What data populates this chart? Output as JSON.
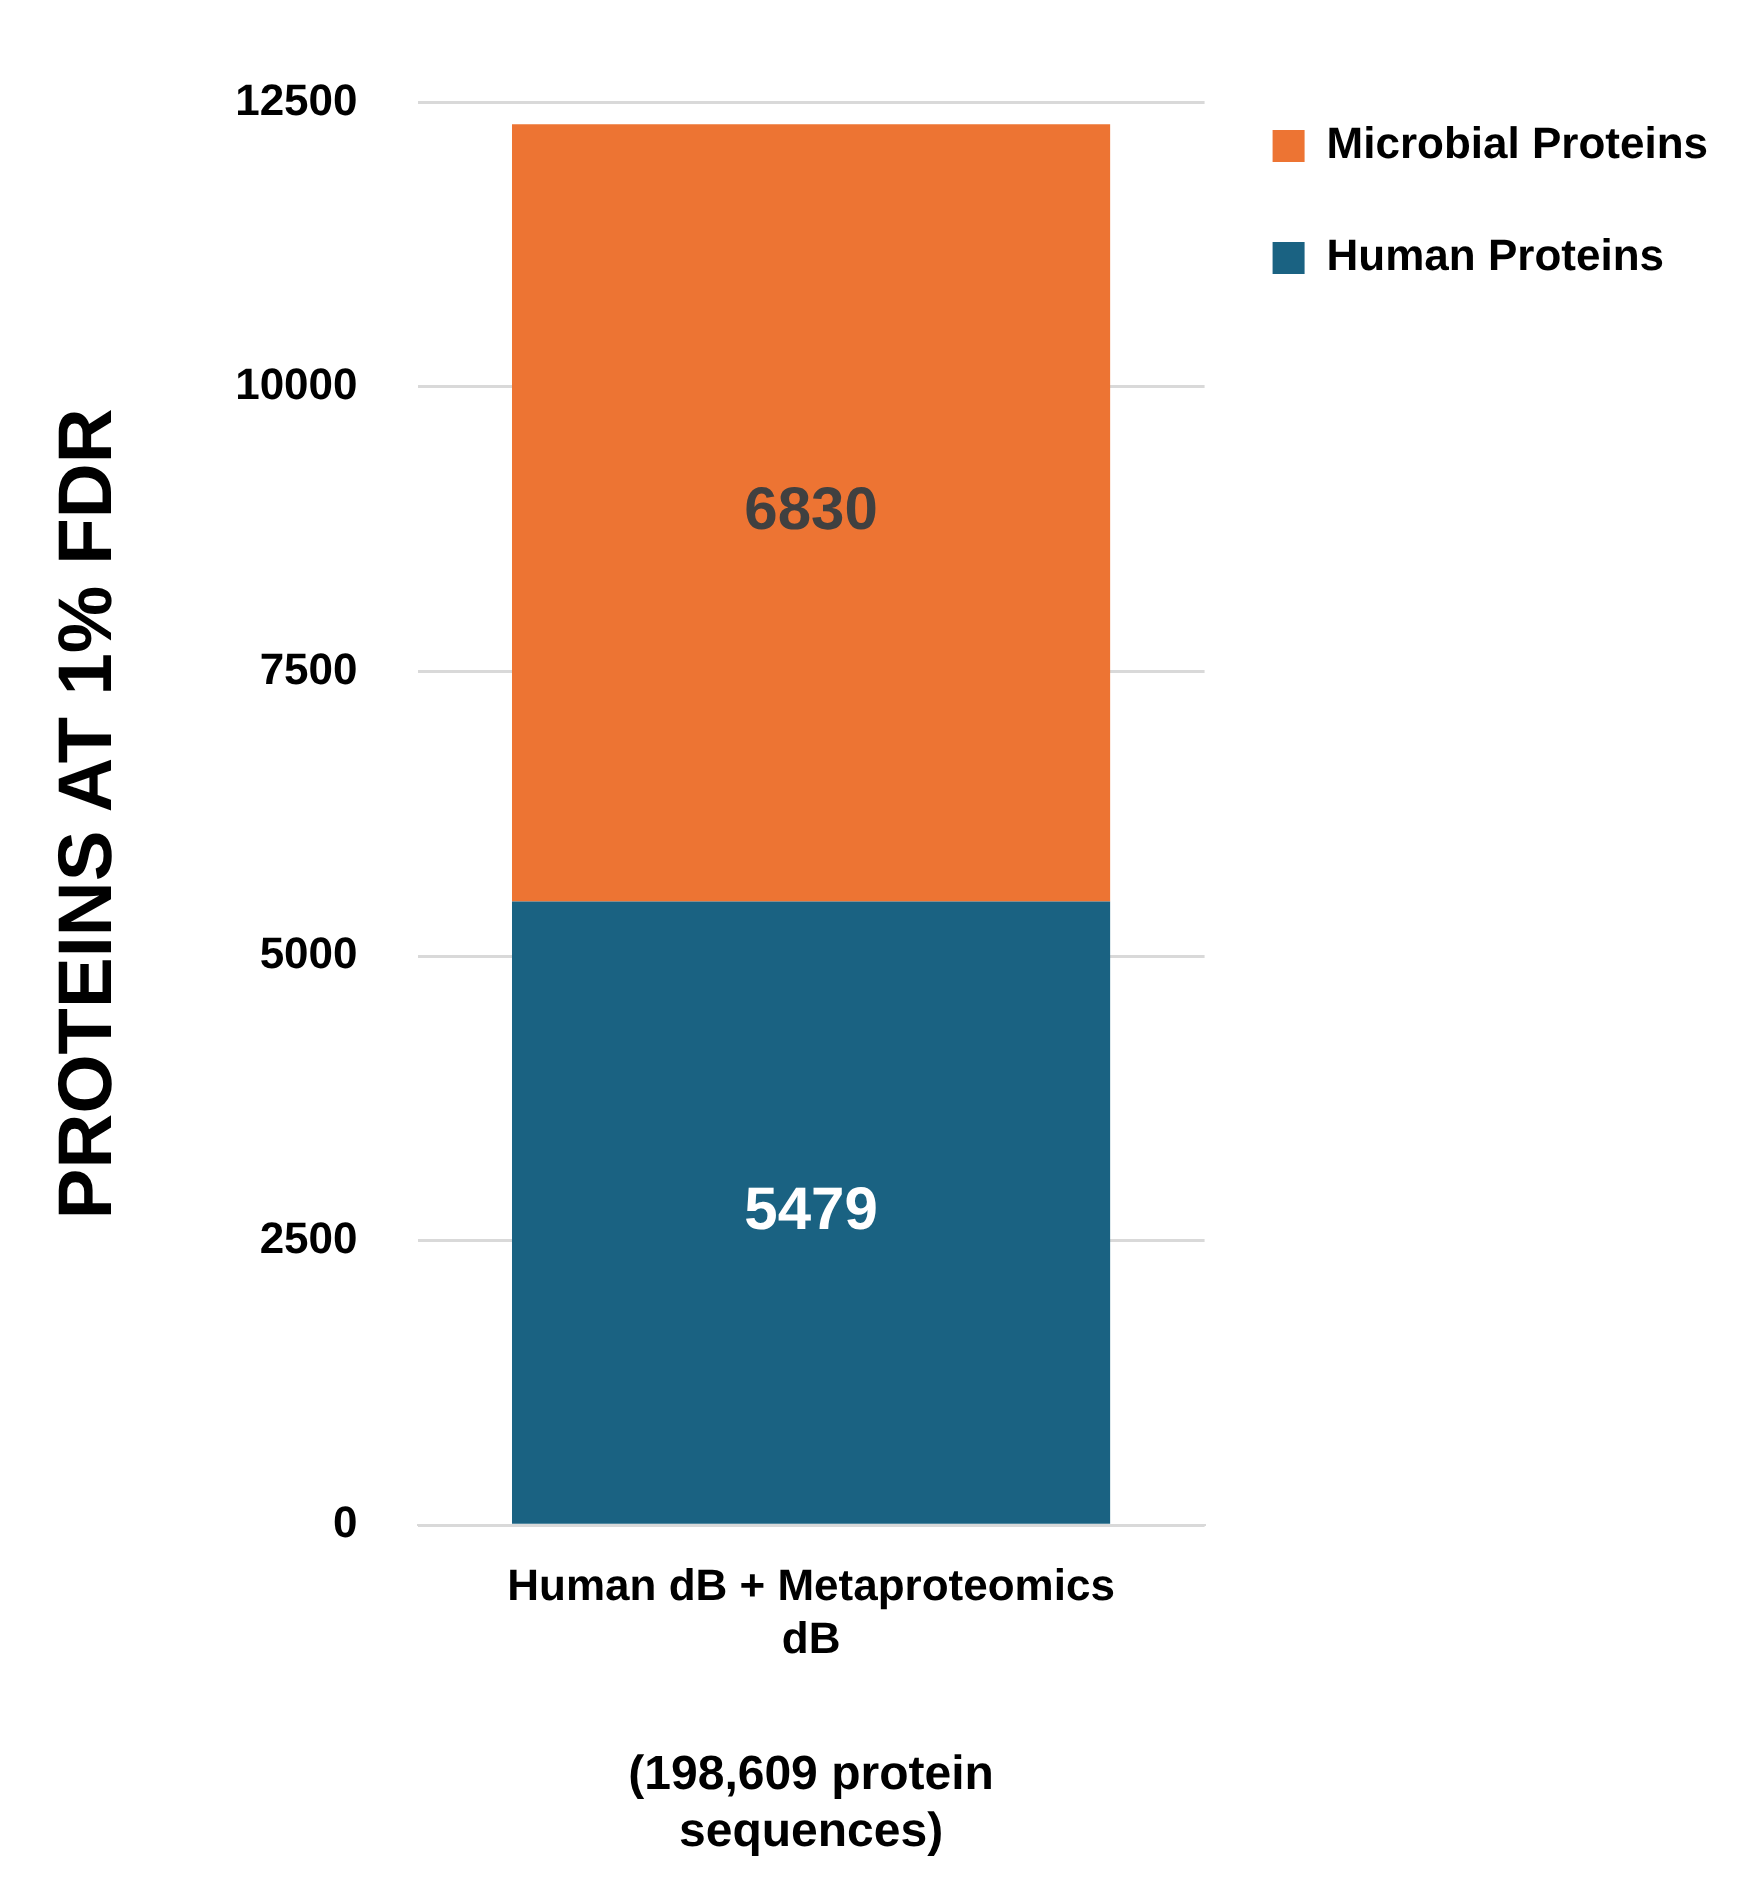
{
  "chart_data": {
    "type": "bar",
    "stacked": true,
    "categories": [
      "Human dB + Metaproteomics dB"
    ],
    "xlabel": "(198,609 protein sequences)",
    "ylabel": "PROTEINS AT 1% FDR",
    "ylim": [
      0,
      12500
    ],
    "yticks": [
      0,
      2500,
      5000,
      7500,
      10000,
      12500
    ],
    "grid": "y",
    "legend": "top right",
    "data_labels": true,
    "series": [
      {
        "name": "Human Proteins",
        "color": "#1a6282",
        "values": [
          5479
        ]
      },
      {
        "name": "Microbial Proteins",
        "color": "#ed7433",
        "values": [
          6830
        ]
      }
    ]
  }
}
